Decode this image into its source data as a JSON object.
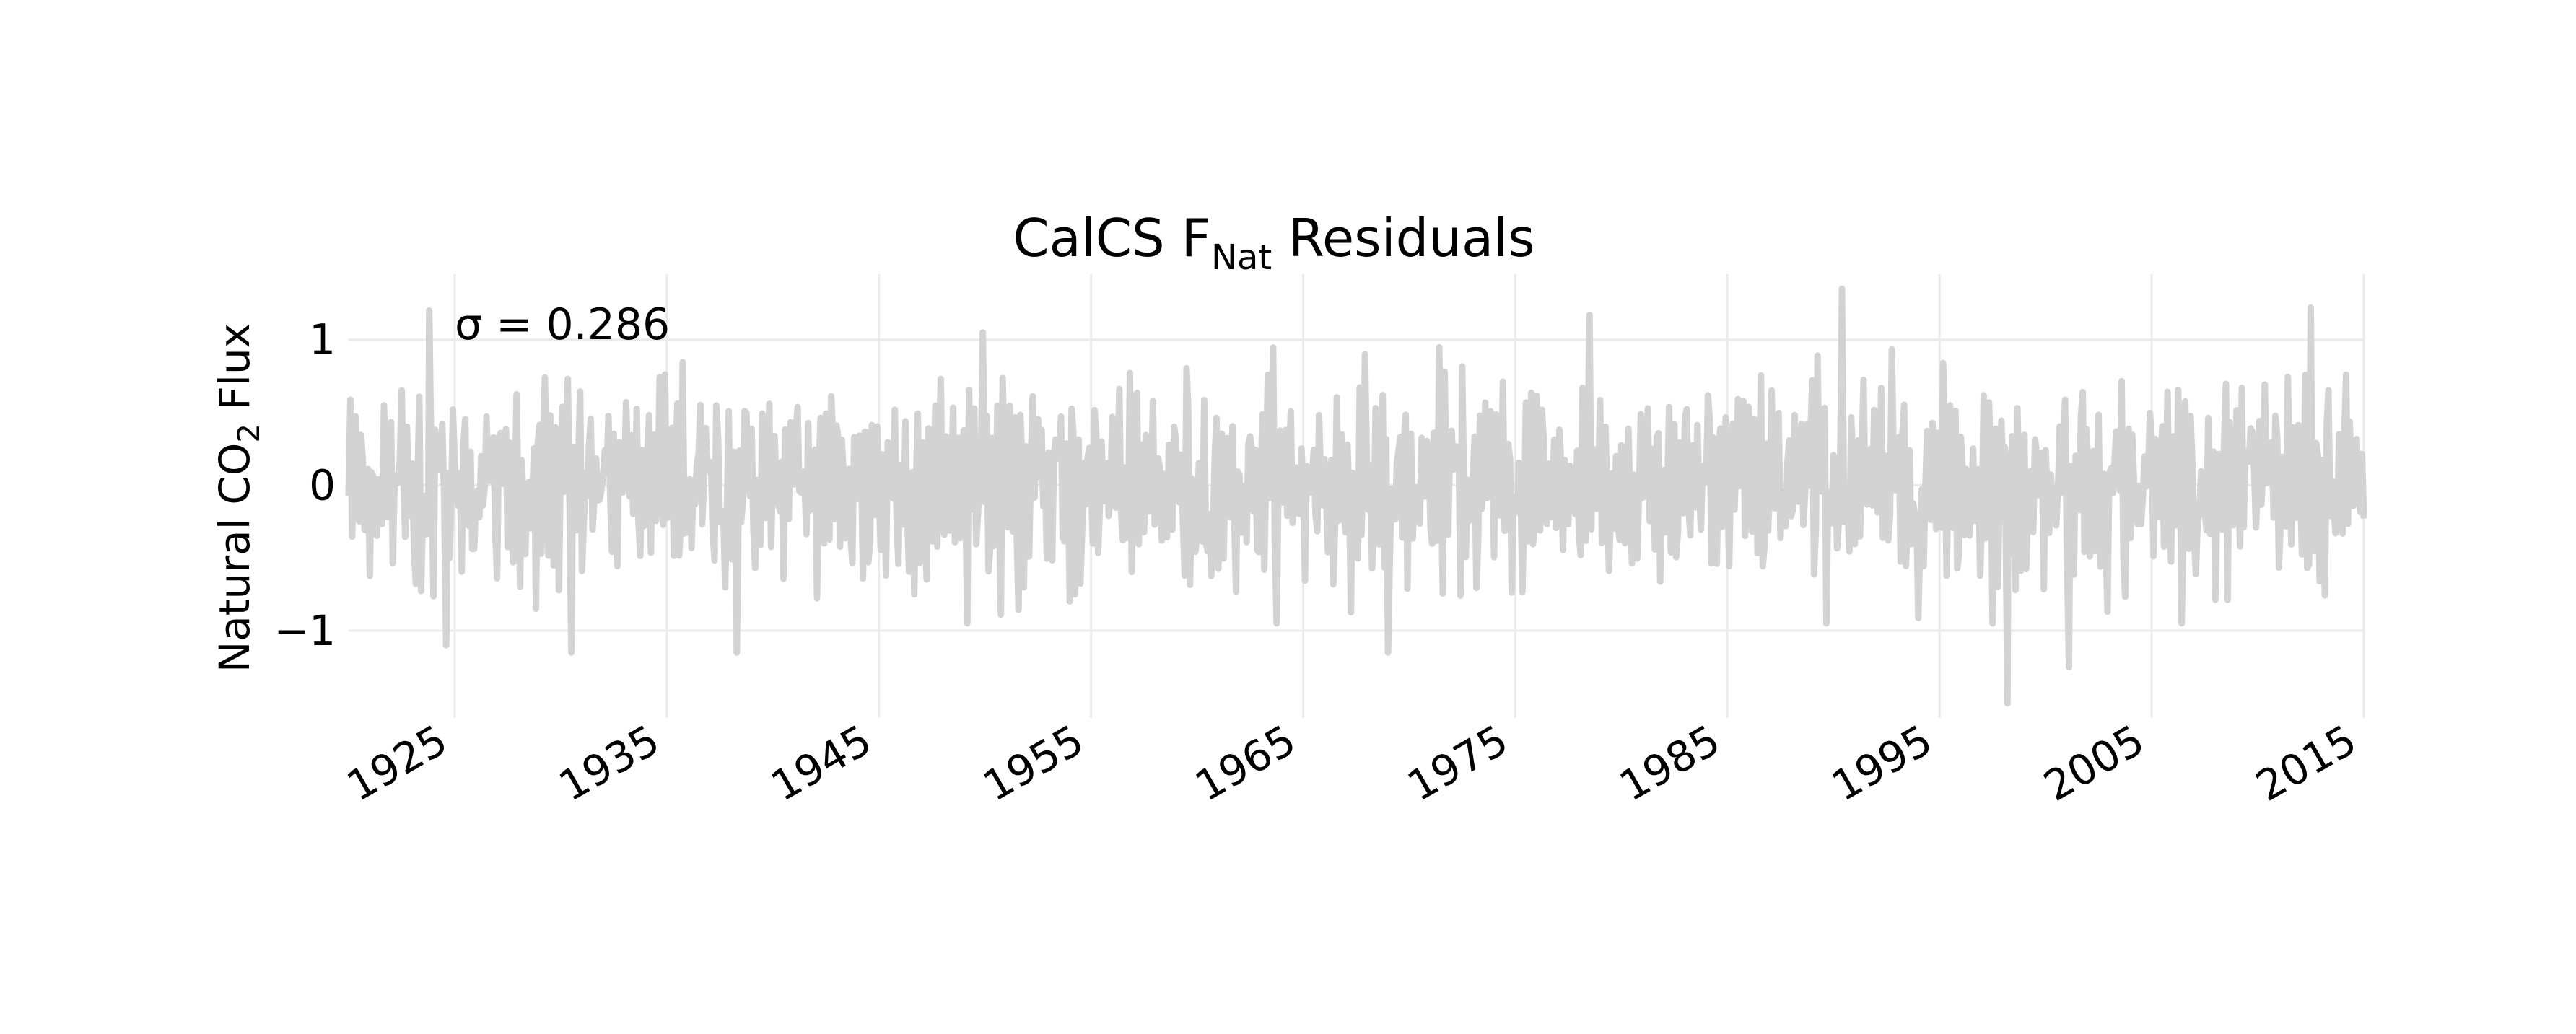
{
  "chart_data": {
    "type": "line",
    "title_main": "CalCS F",
    "title_sub": "Nat",
    "title_rest": " Residuals",
    "ylabel_main": "Natural CO",
    "ylabel_sub": "2",
    "ylabel_rest": " Flux",
    "annotation": "σ = 0.286",
    "sigma": 0.286,
    "xlim": [
      1920,
      2015
    ],
    "ylim": [
      -1.6,
      1.45
    ],
    "x_ticks": [
      1925,
      1935,
      1945,
      1955,
      1965,
      1975,
      1985,
      1995,
      2005,
      2015
    ],
    "x_tick_labels": [
      "1925",
      "1935",
      "1945",
      "1955",
      "1965",
      "1975",
      "1985",
      "1995",
      "2005",
      "2015"
    ],
    "y_ticks": [
      -1,
      0,
      1
    ],
    "y_tick_labels": [
      "−1",
      "0",
      "1"
    ],
    "grid": true,
    "series": [
      {
        "color": "#d3d3d3",
        "sampling": "monthly",
        "x_start": 1920.0,
        "x_end": 2015.0,
        "notable_extremes": [
          {
            "x": 1923.8,
            "y": 1.2
          },
          {
            "x": 1924.6,
            "y": -1.1
          },
          {
            "x": 1930.5,
            "y": -1.15
          },
          {
            "x": 1938.3,
            "y": -1.15
          },
          {
            "x": 1949.9,
            "y": 1.05
          },
          {
            "x": 1969.0,
            "y": -1.15
          },
          {
            "x": 1978.5,
            "y": 1.17
          },
          {
            "x": 1990.4,
            "y": 1.35
          },
          {
            "x": 1998.2,
            "y": -1.5
          },
          {
            "x": 2001.1,
            "y": -1.25
          },
          {
            "x": 2012.5,
            "y": 1.22
          }
        ]
      }
    ]
  }
}
